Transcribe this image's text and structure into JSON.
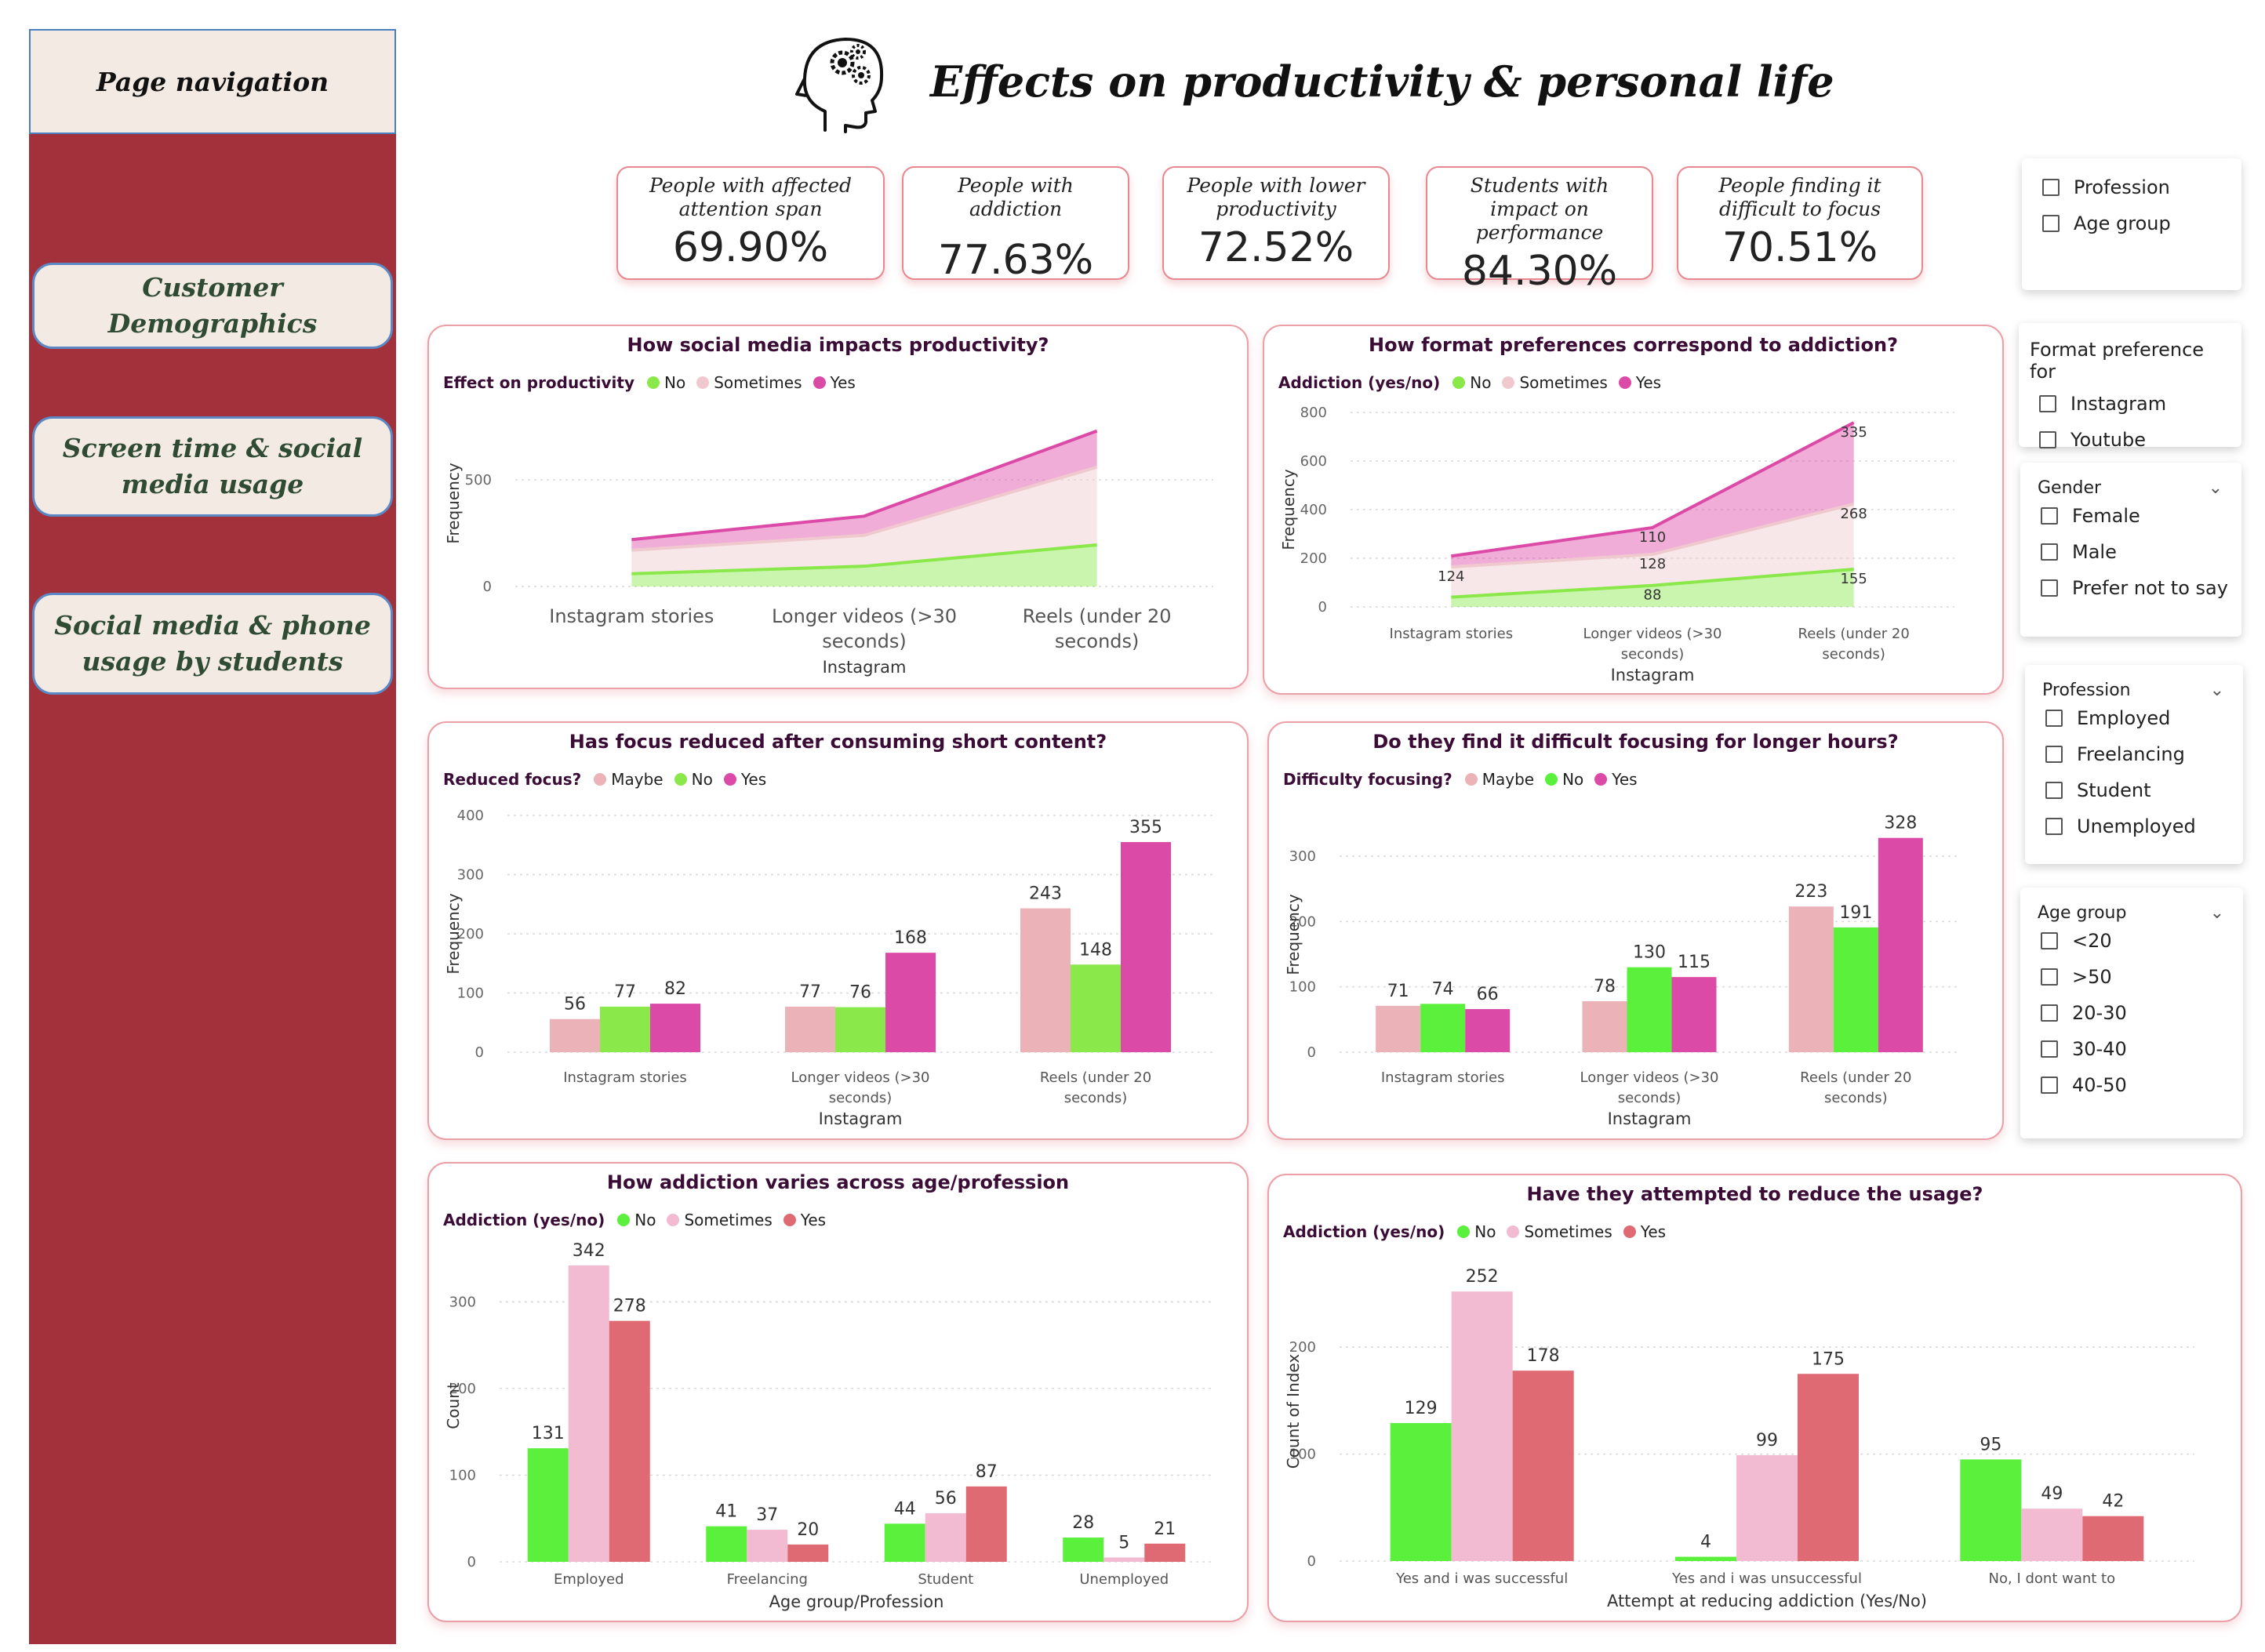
{
  "nav": {
    "header": "Page navigation",
    "buttons": [
      "Customer Demographics",
      "Screen time & social media usage",
      "Social media & phone usage by students"
    ]
  },
  "page_title": "Effects on productivity & personal life",
  "icons": {
    "head": "head-with-gears-icon"
  },
  "kpis": [
    {
      "label": "People with affected attention span",
      "value": "69.90%"
    },
    {
      "label": "People with addiction",
      "value": "77.63%"
    },
    {
      "label": "People with lower productivity",
      "value": "72.52%"
    },
    {
      "label": "Students with impact on performance",
      "value": "84.30%"
    },
    {
      "label": "People finding it difficult to focus",
      "value": "70.51%"
    }
  ],
  "slicers": {
    "fields": {
      "items": [
        "Profession",
        "Age group"
      ]
    },
    "format": {
      "title": "Format preference for",
      "items": [
        "Instagram",
        "Youtube"
      ]
    },
    "gender": {
      "title": "Gender",
      "items": [
        "Female",
        "Male",
        "Prefer not to say"
      ]
    },
    "profession": {
      "title": "Profession",
      "items": [
        "Employed",
        "Freelancing",
        "Student",
        "Unemployed"
      ]
    },
    "age": {
      "title": "Age group",
      "items": [
        "<20",
        ">50",
        "20-30",
        "30-40",
        "40-50"
      ]
    }
  },
  "colors": {
    "green": "#8ae84b",
    "pale_pink": "#f0c9cf",
    "magenta": "#dc4aa8",
    "bright_green": "#5af03c",
    "light_pink": "#f2bbd2",
    "coral": "#df6a73",
    "salmon_pink": "#ebb2b8"
  },
  "chart_data": [
    {
      "id": "productivity",
      "type": "area",
      "title": "How social media impacts productivity?",
      "legend_title": "Effect on productivity",
      "categories": [
        "Instagram stories",
        "Longer videos (>30 seconds)",
        "Reels (under 20 seconds)"
      ],
      "series": [
        {
          "name": "No",
          "values": [
            60,
            95,
            195
          ],
          "color": "#8ae84b"
        },
        {
          "name": "Sometimes",
          "values": [
            110,
            145,
            365
          ],
          "color": "#f0c9cf"
        },
        {
          "name": "Yes",
          "values": [
            50,
            90,
            170
          ],
          "color": "#dc4aa8"
        }
      ],
      "xlabel": "Instagram",
      "ylabel": "Frequency",
      "yticks": [
        0,
        500
      ],
      "ylim": [
        0,
        780
      ]
    },
    {
      "id": "format",
      "type": "area",
      "title": "How format preferences correspond to addiction?",
      "legend_title": "Addiction (yes/no)",
      "categories": [
        "Instagram stories",
        "Longer videos (>30 seconds)",
        "Reels (under 20 seconds)"
      ],
      "series": [
        {
          "name": "No",
          "values": [
            40,
            88,
            155
          ],
          "color": "#8ae84b",
          "labels": [
            "",
            "88",
            "155"
          ]
        },
        {
          "name": "Sometimes",
          "values": [
            124,
            128,
            268
          ],
          "color": "#f0c9cf",
          "labels": [
            "124",
            "128",
            "268"
          ]
        },
        {
          "name": "Yes",
          "values": [
            45,
            110,
            335
          ],
          "color": "#dc4aa8",
          "labels": [
            "",
            "110",
            "335"
          ]
        }
      ],
      "xlabel": "Instagram",
      "ylabel": "Frequency",
      "yticks": [
        0,
        200,
        400,
        600,
        800
      ],
      "ylim": [
        0,
        800
      ]
    },
    {
      "id": "focus",
      "type": "bar",
      "title": "Has focus reduced after consuming short content?",
      "legend_title": "Reduced focus?",
      "categories": [
        "Instagram stories",
        "Longer videos (>30 seconds)",
        "Reels (under 20 seconds)"
      ],
      "series": [
        {
          "name": "Maybe",
          "values": [
            56,
            77,
            243
          ],
          "color": "#ebb2b8"
        },
        {
          "name": "No",
          "values": [
            77,
            76,
            148
          ],
          "color": "#8ae84b"
        },
        {
          "name": "Yes",
          "values": [
            82,
            168,
            355
          ],
          "color": "#dc4aa8"
        }
      ],
      "xlabel": "Instagram",
      "ylabel": "Frequency",
      "yticks": [
        0,
        100,
        200,
        300,
        400
      ],
      "ylim": [
        0,
        400
      ]
    },
    {
      "id": "difficulty",
      "type": "bar",
      "title": "Do they find it difficult focusing for longer hours?",
      "legend_title": "Difficulty focusing?",
      "categories": [
        "Instagram stories",
        "Longer videos (>30 seconds)",
        "Reels (under 20 seconds)"
      ],
      "series": [
        {
          "name": "Maybe",
          "values": [
            71,
            78,
            223
          ],
          "color": "#ebb2b8"
        },
        {
          "name": "No",
          "values": [
            74,
            130,
            191
          ],
          "color": "#5af03c"
        },
        {
          "name": "Yes",
          "values": [
            66,
            115,
            328
          ],
          "color": "#dc4aa8"
        }
      ],
      "xlabel": "Instagram",
      "ylabel": "Frequency",
      "yticks": [
        0,
        100,
        200,
        300
      ],
      "ylim": [
        0,
        360
      ]
    },
    {
      "id": "age_prof",
      "type": "bar",
      "title": "How addiction varies across age/profession",
      "legend_title": "Addiction (yes/no)",
      "categories": [
        "Employed",
        "Freelancing",
        "Student",
        "Unemployed"
      ],
      "series": [
        {
          "name": "No",
          "values": [
            131,
            41,
            44,
            28
          ],
          "color": "#5af03c"
        },
        {
          "name": "Sometimes",
          "values": [
            342,
            37,
            56,
            5
          ],
          "color": "#f2bbd2"
        },
        {
          "name": "Yes",
          "values": [
            278,
            20,
            87,
            21
          ],
          "color": "#df6a73"
        }
      ],
      "xlabel": "Age group/Profession",
      "ylabel": "Count",
      "yticks": [
        0,
        100,
        200,
        300
      ],
      "ylim": [
        0,
        360
      ]
    },
    {
      "id": "reduce",
      "type": "bar",
      "title": "Have they attempted to reduce the usage?",
      "legend_title": "Addiction (yes/no)",
      "categories": [
        "Yes and i was successful",
        "Yes and i was unsuccessful",
        "No, I dont want to"
      ],
      "series": [
        {
          "name": "No",
          "values": [
            129,
            4,
            95
          ],
          "color": "#5af03c"
        },
        {
          "name": "Sometimes",
          "values": [
            252,
            99,
            49
          ],
          "color": "#f2bbd2"
        },
        {
          "name": "Yes",
          "values": [
            178,
            175,
            42
          ],
          "color": "#df6a73"
        }
      ],
      "xlabel": "Attempt at reducing addiction (Yes/No)",
      "ylabel": "Count of Index",
      "yticks": [
        0,
        100,
        200
      ],
      "ylim": [
        0,
        280
      ]
    }
  ]
}
